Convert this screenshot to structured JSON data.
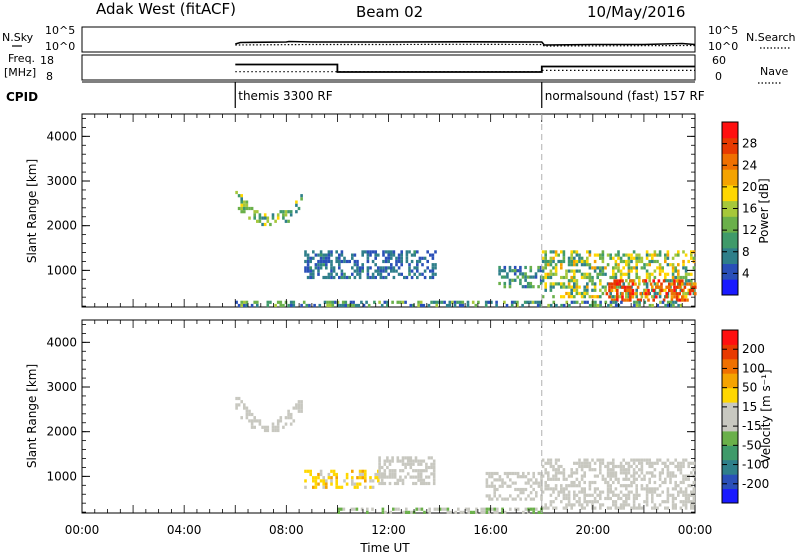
{
  "header": {
    "radar": "Adak West (fitACF)",
    "beam": "Beam 02",
    "date": "10/May/2016"
  },
  "summary": {
    "nsky_label": "N.Sky",
    "nsearch_label": "N.Search",
    "freq_label_1": "Freq.",
    "freq_label_2": "[MHz]",
    "nave_label": "Nave",
    "cpid_label": "CPID",
    "noise_ticks_left": [
      "10^5",
      "10^0"
    ],
    "noise_ticks_right": [
      "10^5",
      "10^0"
    ],
    "freq_ticks": [
      "18",
      "8"
    ],
    "nave_ticks": [
      "60",
      "0"
    ],
    "cpid_segments": [
      {
        "start_hour": 6.0,
        "label": "themis 3300 RF"
      },
      {
        "start_hour": 18.0,
        "label": "normalsound (fast) 157 RF"
      }
    ]
  },
  "panels": {
    "xlabel": "Time UT",
    "x_tick_labels": [
      "00:00",
      "04:00",
      "08:00",
      "12:00",
      "16:00",
      "20:00",
      "00:00"
    ],
    "y_label": "Slant Range [km]",
    "y_ticks": [
      "4000",
      "3000",
      "2000",
      "1000"
    ],
    "power_cbar_label": "Power [dB]",
    "power_cbar_ticks": [
      "28",
      "24",
      "20",
      "16",
      "12",
      "8",
      "4"
    ],
    "velocity_cbar_label": "Velocity [m s⁻¹]",
    "velocity_cbar_ticks": [
      "200",
      "100",
      "50",
      "15",
      "-15",
      "-50",
      "-100",
      "-200"
    ]
  },
  "chart_data": [
    {
      "type": "line",
      "panel": "noise",
      "x_unit": "hour UT",
      "xlim": [
        0,
        24
      ],
      "series": [
        {
          "style": "solid",
          "x": [
            6.0,
            6.2,
            8.0,
            8.1,
            9.0,
            12.0,
            15.0,
            18.0,
            18.1,
            20.0,
            22.0,
            23.5,
            24.0
          ],
          "y_frac": [
            0.32,
            0.38,
            0.4,
            0.42,
            0.4,
            0.4,
            0.41,
            0.4,
            0.28,
            0.3,
            0.3,
            0.34,
            0.3
          ]
        },
        {
          "style": "dotted",
          "x": [
            6.0,
            9.0,
            12.0,
            15.0,
            18.0,
            18.1,
            21.0,
            24.0
          ],
          "y_frac": [
            0.28,
            0.3,
            0.3,
            0.31,
            0.3,
            0.24,
            0.25,
            0.26
          ]
        }
      ]
    },
    {
      "type": "line",
      "panel": "frequency_nave",
      "x_unit": "hour UT",
      "xlim": [
        0,
        24
      ],
      "series": [
        {
          "name": "Freq. [MHz]",
          "style": "solid",
          "ylim": [
            8,
            18
          ],
          "x": [
            6.0,
            10.0,
            10.0,
            18.0,
            18.0,
            24.0
          ],
          "y": [
            14.2,
            14.2,
            11.2,
            11.2,
            13.4,
            13.4
          ]
        },
        {
          "name": "Nave",
          "style": "dotted",
          "ylim": [
            0,
            60
          ],
          "x": [
            6.0,
            18.0,
            18.0,
            24.0
          ],
          "y": [
            20,
            20,
            23,
            23
          ]
        }
      ]
    },
    {
      "type": "heatmap",
      "panel": "power",
      "x_unit": "hour UT",
      "xlim": [
        0,
        24
      ],
      "ylabel": "Slant Range [km]",
      "ylim": [
        180,
        4500
      ],
      "colorbar": {
        "label": "Power [dB]",
        "range": [
          0,
          32
        ],
        "ticks": [
          4,
          8,
          12,
          16,
          20,
          24,
          28
        ],
        "colors": [
          "#1a1aff",
          "#2a4fb8",
          "#2f7f8a",
          "#3f9a6a",
          "#6ab04a",
          "#a6c83a",
          "#ffd700",
          "#f4a300",
          "#f07000",
          "#e83a00",
          "#ff1010"
        ]
      },
      "regions": [
        {
          "x": [
            6.0,
            8.6
          ],
          "y": [
            2000,
            2850
          ],
          "level": [
            6,
            20
          ],
          "shape": "arc"
        },
        {
          "x": [
            8.7,
            13.8
          ],
          "y": [
            850,
            1450
          ],
          "level": [
            3,
            9
          ]
        },
        {
          "x": [
            16.3,
            18.0
          ],
          "y": [
            650,
            1100
          ],
          "level": [
            4,
            14
          ]
        },
        {
          "x": [
            18.0,
            24.0
          ],
          "y": [
            400,
            1450
          ],
          "level": [
            6,
            22
          ]
        },
        {
          "x": [
            20.5,
            24.0
          ],
          "y": [
            300,
            800
          ],
          "level": [
            22,
            31
          ]
        },
        {
          "x": [
            6.0,
            24.0
          ],
          "y": [
            180,
            320
          ],
          "level": [
            3,
            16
          ]
        }
      ]
    },
    {
      "type": "heatmap",
      "panel": "velocity",
      "x_unit": "hour UT",
      "xlim": [
        0,
        24
      ],
      "ylabel": "Slant Range [km]",
      "ylim": [
        180,
        4500
      ],
      "colorbar": {
        "label": "Velocity [m s⁻¹]",
        "range": [
          -250,
          250
        ],
        "ticks": [
          200,
          100,
          50,
          15,
          -15,
          -50,
          -100,
          -200
        ],
        "colors": [
          "#1a1aff",
          "#2a4fb8",
          "#2f7f8a",
          "#3f9a6a",
          "#6ab04a",
          "#c8c8c0",
          "#c8c8c0",
          "#ffd700",
          "#f4a300",
          "#f07000",
          "#e83a00",
          "#ff1010"
        ]
      },
      "regions": [
        {
          "x": [
            6.0,
            8.6
          ],
          "y": [
            2000,
            2850
          ],
          "value": [
            -15,
            15
          ],
          "shape": "arc"
        },
        {
          "x": [
            8.7,
            11.6
          ],
          "y": [
            750,
            1150
          ],
          "value": [
            -90,
            -20
          ]
        },
        {
          "x": [
            11.6,
            13.8
          ],
          "y": [
            850,
            1450
          ],
          "value": [
            -15,
            15
          ]
        },
        {
          "x": [
            15.8,
            18.0
          ],
          "y": [
            500,
            1100
          ],
          "value": [
            -15,
            15
          ]
        },
        {
          "x": [
            18.0,
            24.0
          ],
          "y": [
            300,
            1400
          ],
          "value": [
            -15,
            15
          ]
        },
        {
          "x": [
            10.0,
            18.0
          ],
          "y": [
            180,
            300
          ],
          "value": [
            10,
            60
          ]
        }
      ]
    }
  ]
}
